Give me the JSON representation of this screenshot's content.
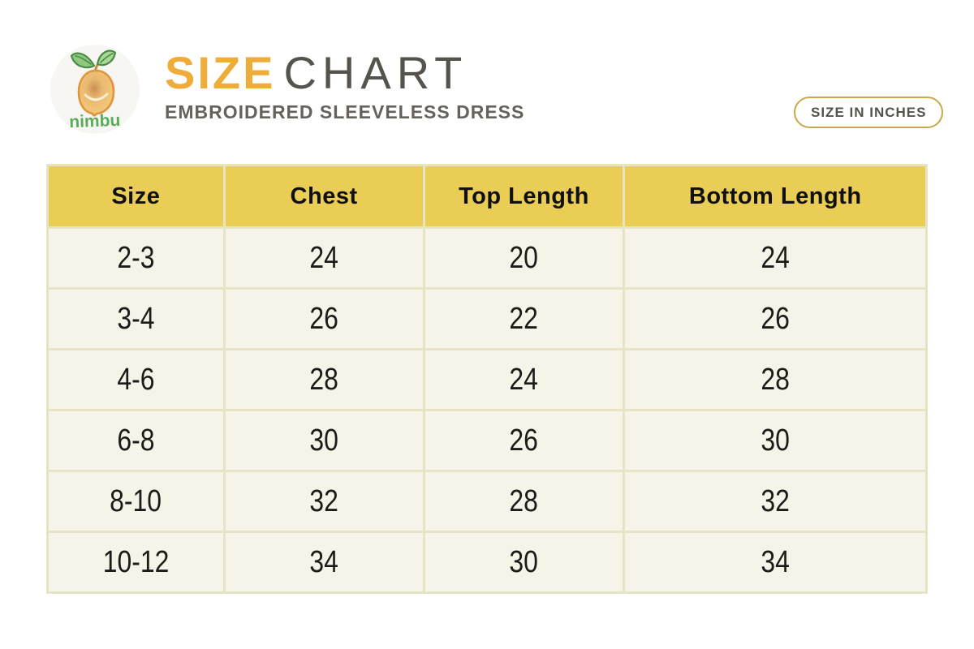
{
  "header": {
    "brand": "nimbu",
    "title_primary": "SIZE",
    "title_secondary": "CHART",
    "subtitle": "EMBROIDERED SLEEVELESS DRESS",
    "unit_badge": "SIZE IN INCHES"
  },
  "table": {
    "columns": [
      "Size",
      "Chest",
      "Top Length",
      "Bottom Length"
    ],
    "rows": [
      [
        "2-3",
        "24",
        "20",
        "24"
      ],
      [
        "3-4",
        "26",
        "22",
        "26"
      ],
      [
        "4-6",
        "28",
        "24",
        "28"
      ],
      [
        "6-8",
        "30",
        "26",
        "30"
      ],
      [
        "8-10",
        "32",
        "28",
        "32"
      ],
      [
        "10-12",
        "34",
        "30",
        "34"
      ]
    ]
  },
  "chart_data": {
    "type": "table",
    "title": "SIZE CHART",
    "subtitle": "EMBROIDERED SLEEVELESS DRESS",
    "unit": "inches",
    "columns": [
      "Size",
      "Chest",
      "Top Length",
      "Bottom Length"
    ],
    "rows": [
      {
        "size": "2-3",
        "chest": 24,
        "top_length": 20,
        "bottom_length": 24
      },
      {
        "size": "3-4",
        "chest": 26,
        "top_length": 22,
        "bottom_length": 26
      },
      {
        "size": "4-6",
        "chest": 28,
        "top_length": 24,
        "bottom_length": 28
      },
      {
        "size": "6-8",
        "chest": 30,
        "top_length": 26,
        "bottom_length": 30
      },
      {
        "size": "8-10",
        "chest": 32,
        "top_length": 28,
        "bottom_length": 32
      },
      {
        "size": "10-12",
        "chest": 34,
        "top_length": 30,
        "bottom_length": 34
      }
    ]
  },
  "colors": {
    "accent": "#EFAC38",
    "title_gray": "#56524C",
    "header_yellow": "#EACD55",
    "row_cream": "#F6F4E9",
    "table_border": "#E7E3C5",
    "badge_border": "#C9A84C",
    "logo_green": "#5BAC58",
    "lemon_orange": "#E89B3F"
  }
}
